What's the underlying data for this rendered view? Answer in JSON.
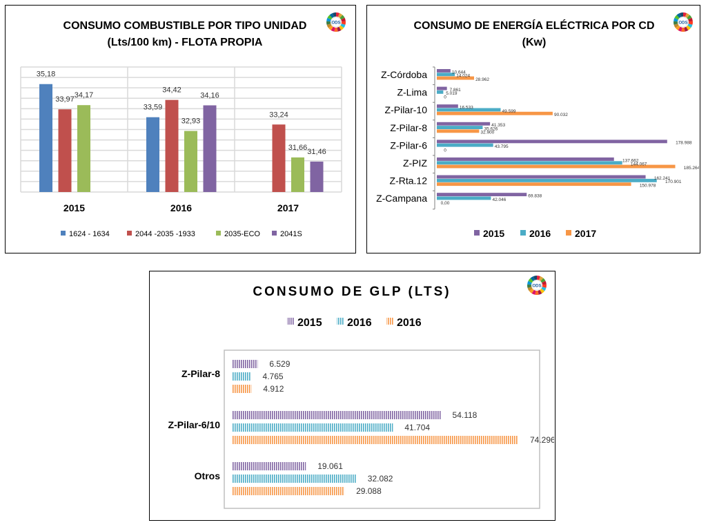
{
  "colors": {
    "blue": "#4F81BD",
    "red": "#C0504D",
    "green": "#9BBB59",
    "purple": "#8064A2",
    "teal": "#4BACC6",
    "orange": "#F79646",
    "grid": "#D9D9D9"
  },
  "logo_text": "ODS",
  "chart_data": [
    {
      "type": "bar",
      "title": "CONSUMO COMBUSTIBLE POR TIPO UNIDAD",
      "subtitle": "(Lts/100 km) - FLOTA PROPIA",
      "categories": [
        "2015",
        "2016",
        "2017"
      ],
      "series": [
        {
          "name": "1624 - 1634",
          "values": [
            35.18,
            33.59,
            null
          ],
          "labels": [
            "35,18",
            "33,59",
            ""
          ]
        },
        {
          "name": "2044 -2035 -1933",
          "values": [
            33.97,
            34.42,
            33.24
          ],
          "labels": [
            "33,97",
            "34,42",
            "33,24"
          ]
        },
        {
          "name": "2035-ECO",
          "values": [
            34.17,
            32.93,
            31.66
          ],
          "labels": [
            "34,17",
            "32,93",
            "31,66"
          ]
        },
        {
          "name": "2041S",
          "values": [
            null,
            34.16,
            31.46
          ],
          "labels": [
            "",
            "34,16",
            "31,46"
          ]
        }
      ],
      "ylim": [
        30,
        36
      ],
      "grid": true,
      "legend": "bottom"
    },
    {
      "type": "bar",
      "orientation": "horizontal",
      "title": "CONSUMO DE ENERGÍA ELÉCTRICA POR CD",
      "subtitle": "(Kw)",
      "categories": [
        "Z-Córdoba",
        "Z-Lima",
        "Z-Pilar-10",
        "Z-Pilar-8",
        "Z-Pilar-6",
        "Z-PIZ",
        "Z-Rta.12",
        "Z-Campana"
      ],
      "series": [
        {
          "name": "2015",
          "values": [
            10644,
            7861,
            16533,
            41353,
            178988,
            137662,
            162241,
            69838
          ],
          "labels": [
            "10.644",
            "7.861",
            "16.533",
            "41.353",
            "178.988",
            "137.662",
            "162.241",
            "69.838"
          ]
        },
        {
          "name": "2016",
          "values": [
            14024,
            5019,
            49599,
            35626,
            43795,
            144067,
            170901,
            42046
          ],
          "labels": [
            "14.024",
            "5.019",
            "49.599",
            "35.626",
            "43.795",
            "144.067",
            "170.901",
            "42.046"
          ]
        },
        {
          "name": "2017",
          "values": [
            28962,
            0,
            90032,
            32900,
            0,
            185264,
            150978,
            0
          ],
          "labels": [
            "28.962",
            "0",
            "90.032",
            "32.900",
            "0",
            "185.264",
            "150.978",
            "0,00"
          ]
        }
      ],
      "legend": "bottom"
    },
    {
      "type": "bar",
      "orientation": "horizontal",
      "title": "CONSUMO DE GLP (LTS)",
      "categories": [
        "Z-Pilar-8",
        "Z-Pilar-6/10",
        "Otros"
      ],
      "series": [
        {
          "name": "2015",
          "values": [
            6529,
            54118,
            19061
          ],
          "labels": [
            "6.529",
            "54.118",
            "19.061"
          ]
        },
        {
          "name": "2016",
          "values": [
            4765,
            41704,
            32082
          ],
          "labels": [
            "4.765",
            "41.704",
            "32.082"
          ]
        },
        {
          "name": "2016",
          "values": [
            4912,
            74296,
            29088
          ],
          "labels": [
            "4.912",
            "74.296",
            "29.088"
          ]
        }
      ],
      "legend": "top"
    }
  ]
}
